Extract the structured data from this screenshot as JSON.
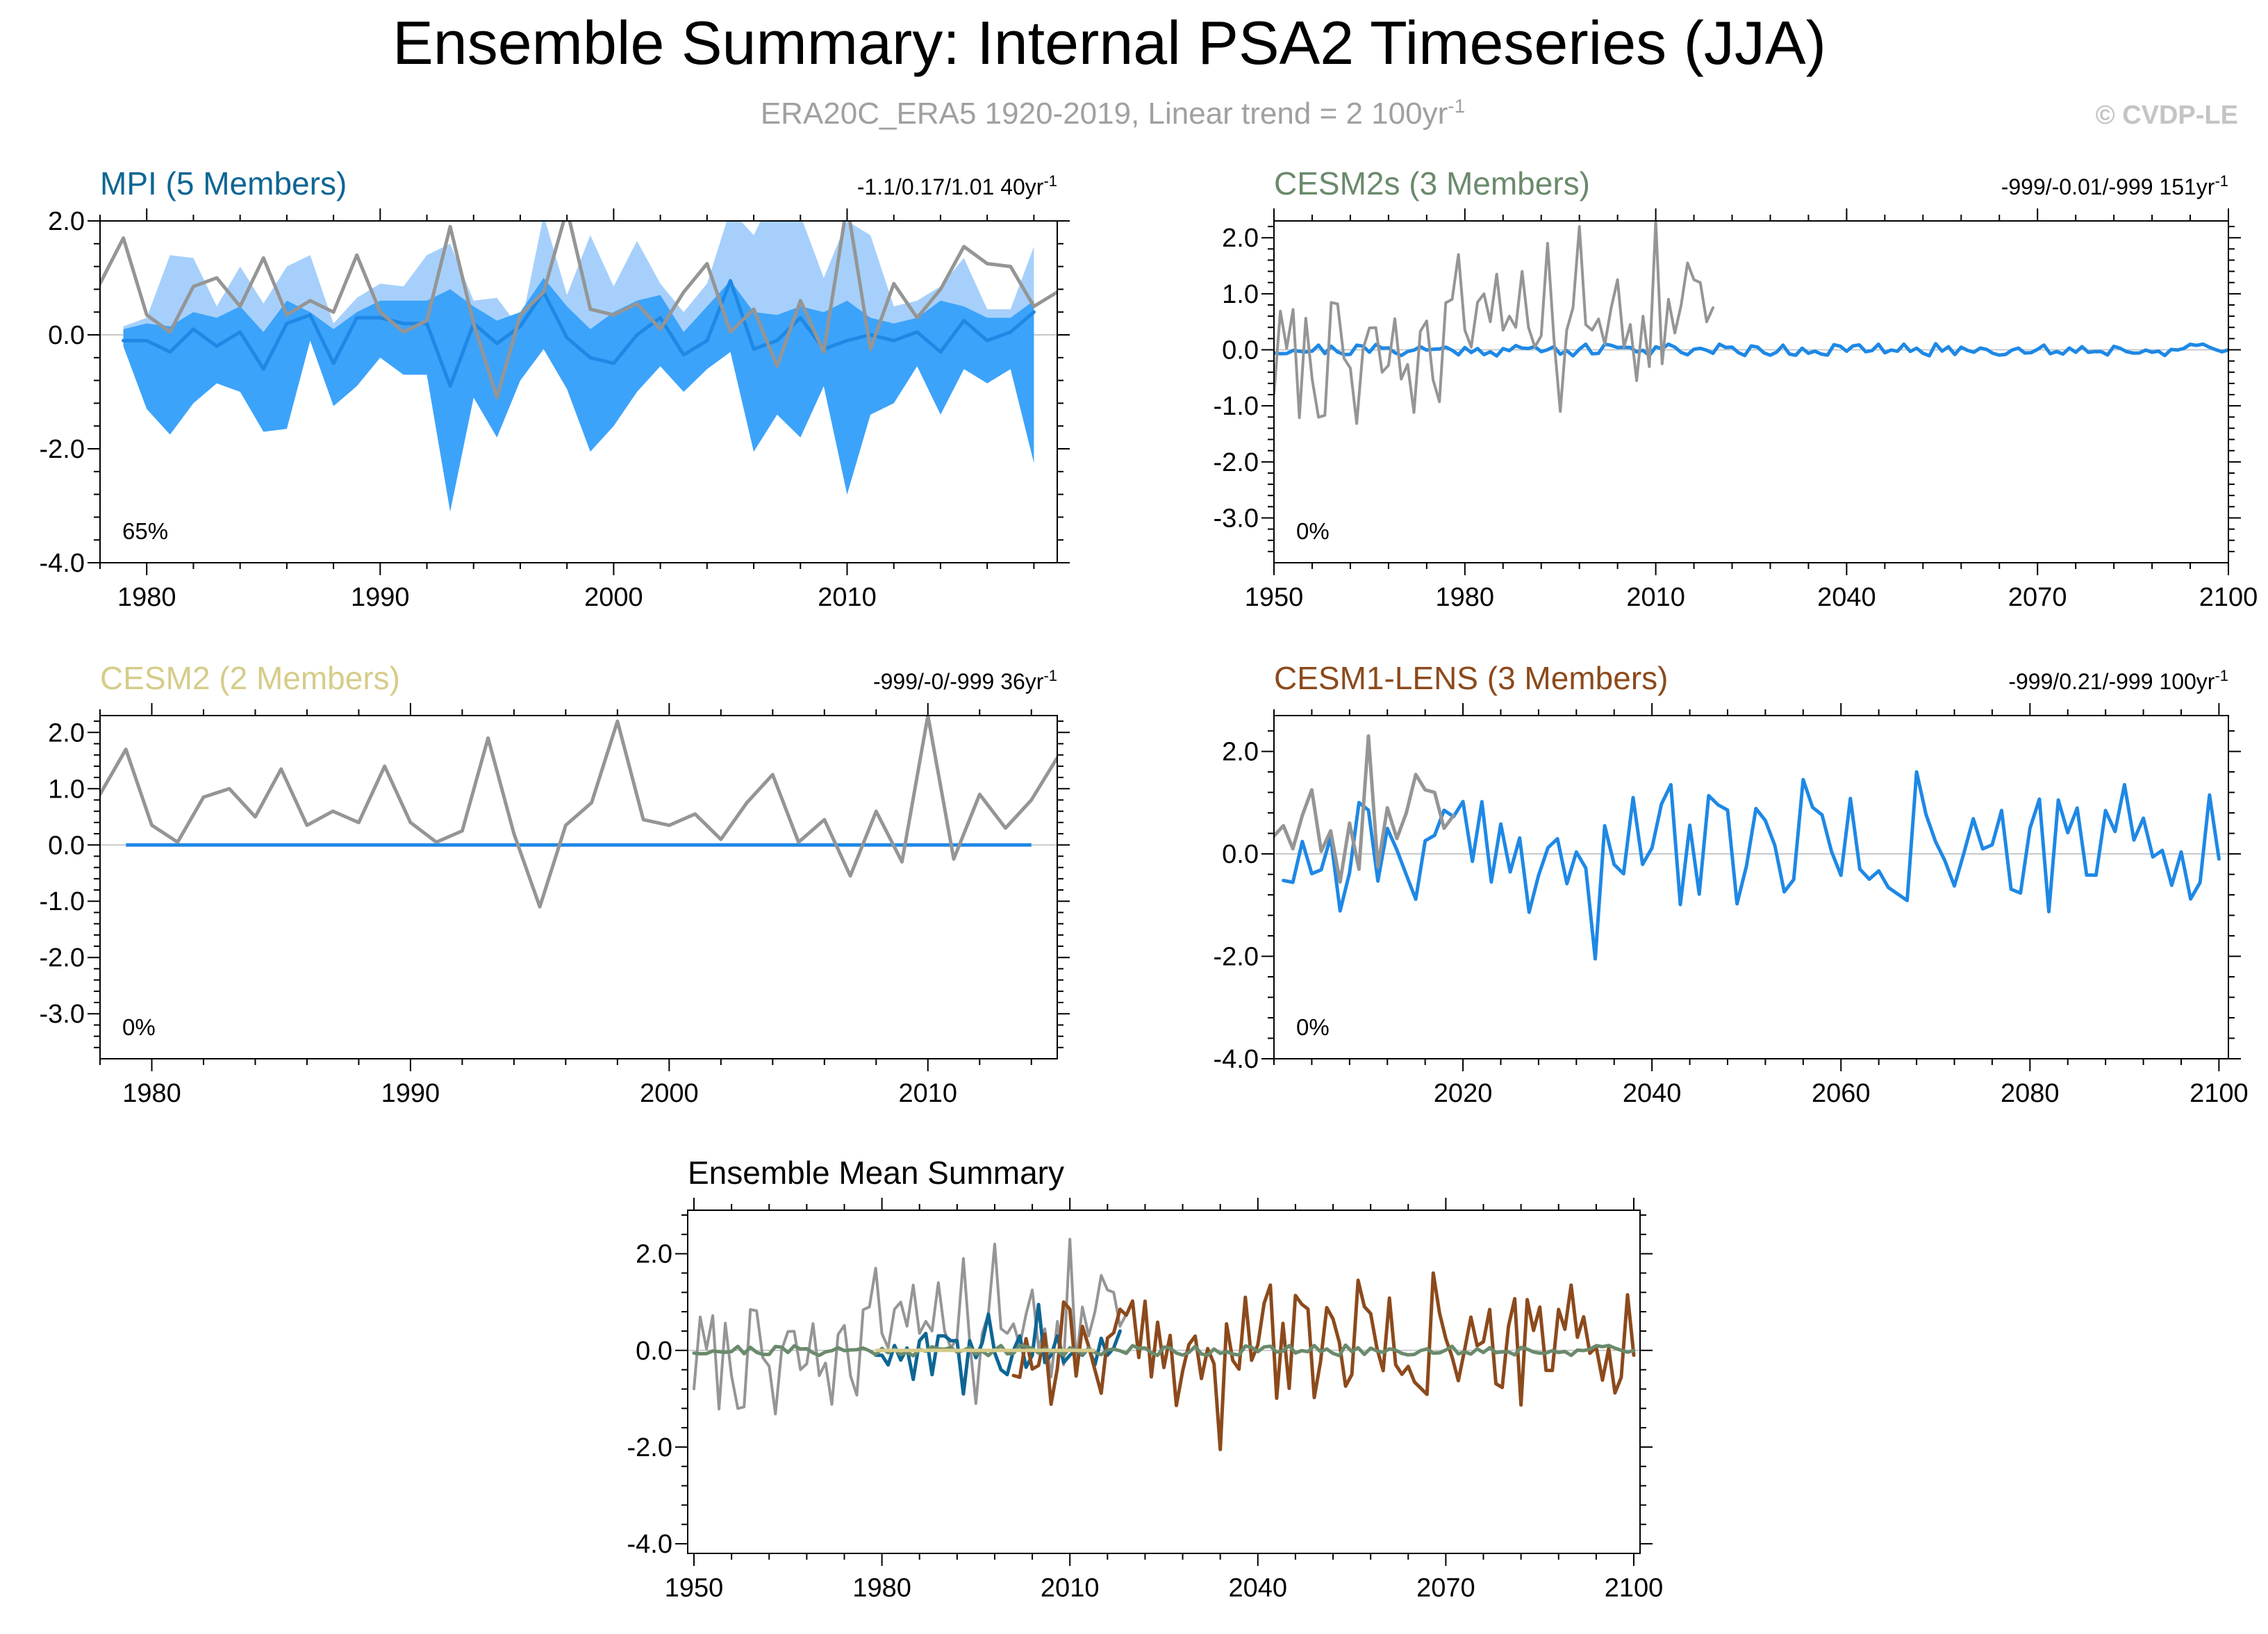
{
  "header": {
    "title": "Ensemble Summary: Internal PSA2 Timeseries (JJA)",
    "subtitle": "ERA20C_ERA5 1920-2019, Linear trend = 2 100yr",
    "subtitle_sup": "-1",
    "copyright": "© CVDP-LE"
  },
  "colors": {
    "obs": "#959595",
    "ensemble_mean": "#1e88e5",
    "band_outer": "#a6d0fb",
    "band_inner": "#3ca3fa",
    "zero_line": "#c8c8c8"
  },
  "chart_data": [
    {
      "id": "mpi",
      "type": "line",
      "title": "MPI (5 Members)",
      "title_color": "#0d6694",
      "stats": "-1.1/0.17/1.01 40yr",
      "stats_sup": "-1",
      "percent_label": "65%",
      "xlim": [
        1978,
        2019
      ],
      "ylim": [
        -4.0,
        2.0
      ],
      "y_ticks": [
        "2.0",
        "0.0",
        "-2.0",
        "-4.0"
      ],
      "y_tick_values": [
        2,
        0,
        -2,
        -4
      ],
      "x_ticks": [
        "1980",
        "1990",
        "2000",
        "2010"
      ],
      "x_tick_values": [
        1980,
        1990,
        2000,
        2010
      ],
      "obs_series": {
        "name": "ERA20C_ERA5",
        "x": [
          1978,
          1979,
          1980,
          1981,
          1982,
          1983,
          1984,
          1985,
          1986,
          1987,
          1988,
          1989,
          1990,
          1991,
          1992,
          1993,
          1994,
          1995,
          1996,
          1997,
          1998,
          1999,
          2000,
          2001,
          2002,
          2003,
          2004,
          2005,
          2006,
          2007,
          2008,
          2009,
          2010,
          2011,
          2012,
          2013,
          2014,
          2015,
          2016,
          2017,
          2018,
          2019
        ],
        "values": [
          0.9,
          1.7,
          0.35,
          0.05,
          0.85,
          1.0,
          0.5,
          1.35,
          0.35,
          0.6,
          0.4,
          1.4,
          0.4,
          0.05,
          0.25,
          1.9,
          0.2,
          -1.1,
          0.35,
          0.75,
          2.2,
          0.45,
          0.35,
          0.55,
          0.1,
          0.75,
          1.25,
          0.05,
          0.45,
          -0.55,
          0.6,
          -0.3,
          2.3,
          -0.25,
          0.9,
          0.3,
          0.8,
          1.55,
          1.25,
          1.2,
          0.5,
          0.75
        ]
      },
      "ensemble_mean": {
        "name": "Ensemble mean",
        "x": [
          1979,
          1980,
          1981,
          1982,
          1983,
          1984,
          1985,
          1986,
          1987,
          1988,
          1989,
          1990,
          1991,
          1992,
          1993,
          1994,
          1995,
          1996,
          1997,
          1998,
          1999,
          2000,
          2001,
          2002,
          2003,
          2004,
          2005,
          2006,
          2007,
          2008,
          2009,
          2010,
          2011,
          2012,
          2013,
          2014,
          2015,
          2016,
          2017,
          2018
        ],
        "values": [
          -0.1,
          -0.1,
          -0.3,
          0.1,
          -0.2,
          0.05,
          -0.6,
          0.2,
          0.35,
          -0.5,
          0.3,
          0.3,
          0.2,
          0.2,
          -0.9,
          0.2,
          -0.15,
          0.15,
          0.75,
          -0.05,
          -0.4,
          -0.5,
          0.0,
          0.3,
          -0.35,
          -0.1,
          0.95,
          -0.25,
          -0.1,
          0.3,
          -0.25,
          -0.1,
          0.0,
          -0.1,
          0.05,
          -0.3,
          0.25,
          -0.1,
          0.05,
          0.4
        ]
      },
      "band_outer": {
        "name": "Ensemble range",
        "upper": [
          0.15,
          0.3,
          1.4,
          1.35,
          0.5,
          1.2,
          0.55,
          1.2,
          1.4,
          0.2,
          0.65,
          0.9,
          0.85,
          1.4,
          1.6,
          0.6,
          0.65,
          0.1,
          2.1,
          0.7,
          1.75,
          0.85,
          1.65,
          0.9,
          0.4,
          0.9,
          2.2,
          1.75,
          2.6,
          2.1,
          1.0,
          2.0,
          1.75,
          0.5,
          0.6,
          0.85,
          1.35,
          0.45,
          0.45,
          1.55
        ],
        "lower": [
          -0.2,
          -1.3,
          -1.75,
          -1.2,
          -0.85,
          -1.0,
          -1.7,
          -1.65,
          -0.1,
          -1.25,
          -0.9,
          -0.4,
          -0.7,
          -0.7,
          -3.1,
          -1.1,
          -1.8,
          -0.8,
          -0.25,
          -0.95,
          -2.05,
          -1.6,
          -1.0,
          -0.55,
          -1.0,
          -0.6,
          -0.3,
          -2.05,
          -1.4,
          -1.8,
          -0.9,
          -2.8,
          -1.4,
          -1.2,
          -0.55,
          -1.4,
          -0.6,
          -0.85,
          -0.6,
          -2.25
        ]
      },
      "band_inner": {
        "name": "Ensemble interquartile",
        "upper": [
          0.1,
          0.2,
          0.15,
          0.4,
          0.3,
          0.5,
          0.05,
          0.6,
          0.4,
          0.1,
          0.4,
          0.6,
          0.6,
          0.6,
          0.8,
          0.5,
          0.25,
          0.4,
          1.0,
          0.5,
          0.1,
          0.4,
          0.6,
          0.7,
          0.05,
          0.5,
          0.95,
          0.4,
          0.35,
          0.5,
          0.4,
          0.6,
          0.3,
          0.2,
          0.3,
          0.6,
          0.5,
          0.3,
          0.3,
          0.6
        ]
      }
    },
    {
      "id": "cesm2s",
      "type": "line",
      "title": "CESM2s (3 Members)",
      "title_color": "#6a8a6c",
      "stats": "-999/-0.01/-999 151yr",
      "stats_sup": "-1",
      "percent_label": "0%",
      "xlim": [
        1950,
        2100
      ],
      "ylim": [
        -3.8,
        2.3
      ],
      "y_ticks": [
        "2.0",
        "1.0",
        "0.0",
        "-1.0",
        "-2.0",
        "-3.0"
      ],
      "y_tick_values": [
        2,
        1,
        0,
        -1,
        -2,
        -3
      ],
      "x_ticks": [
        "1950",
        "1980",
        "2010",
        "2040",
        "2070",
        "2100"
      ],
      "x_tick_values": [
        1950,
        1980,
        2010,
        2040,
        2070,
        2100
      ]
    },
    {
      "id": "cesm2",
      "type": "line",
      "title": "CESM2 (2 Members)",
      "title_color": "#d6cc8a",
      "stats": "-999/-0/-999 36yr",
      "stats_sup": "-1",
      "percent_label": "0%",
      "xlim": [
        1978,
        2015
      ],
      "ylim": [
        -3.8,
        2.3
      ],
      "y_ticks": [
        "2.0",
        "1.0",
        "0.0",
        "-1.0",
        "-2.0",
        "-3.0"
      ],
      "y_tick_values": [
        2,
        1,
        0,
        -1,
        -2,
        -3
      ],
      "x_ticks": [
        "1980",
        "1990",
        "2000",
        "2010"
      ],
      "x_tick_values": [
        1980,
        1990,
        2000,
        2010
      ]
    },
    {
      "id": "cesm1",
      "type": "line",
      "title": "CESM1-LENS (3 Members)",
      "title_color": "#8c4a1c",
      "stats": "-999/0.21/-999 100yr",
      "stats_sup": "-1",
      "percent_label": "0%",
      "xlim": [
        2000,
        2101
      ],
      "ylim": [
        -4.0,
        2.7
      ],
      "y_ticks": [
        "2.0",
        "0.0",
        "-2.0",
        "-4.0"
      ],
      "y_tick_values": [
        2,
        0,
        -2,
        -4
      ],
      "x_ticks": [
        "2020",
        "2040",
        "2060",
        "2080",
        "2100"
      ],
      "x_tick_values": [
        2020,
        2040,
        2060,
        2080,
        2100
      ]
    },
    {
      "id": "summary",
      "type": "line",
      "title": "Ensemble Mean Summary",
      "title_color": "#000000",
      "xlim": [
        1949,
        2101
      ],
      "ylim": [
        -4.2,
        2.9
      ],
      "y_ticks": [
        "2.0",
        "0.0",
        "-2.0",
        "-4.0"
      ],
      "y_tick_values": [
        2,
        0,
        -2,
        -4
      ],
      "x_ticks": [
        "1950",
        "1980",
        "2010",
        "2040",
        "2070",
        "2100"
      ],
      "x_tick_values": [
        1950,
        1980,
        2010,
        2040,
        2070,
        2100
      ],
      "series_colors": {
        "obs": "#959595",
        "MPI": "#0d6694",
        "CESM2s": "#6a8a6c",
        "CESM2": "#d6cc8a",
        "CESM1-LENS": "#8c4a1c"
      }
    }
  ]
}
